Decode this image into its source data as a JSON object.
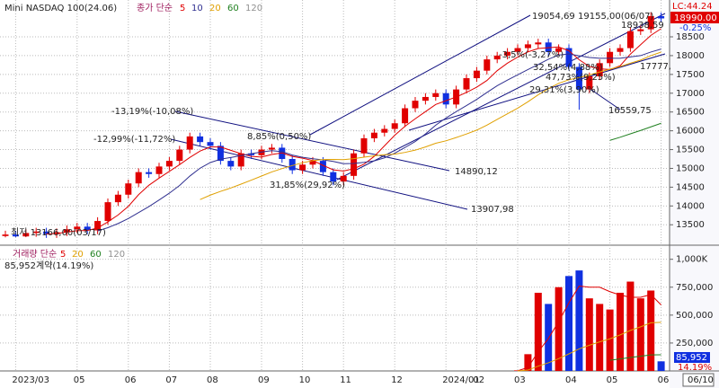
{
  "chart_data": [
    {
      "type": "candlestick",
      "title": "Mini NASDAQ 100(24.06)",
      "indicator": "종가 단순",
      "lc": "LC:44.24",
      "last_price": "18990.00",
      "last_change": "-0.25%",
      "up_color": "#e00000",
      "down_color": "#1030e0",
      "ma": [
        {
          "period": 5,
          "color": "#e00000"
        },
        {
          "period": 10,
          "color": "#303090"
        },
        {
          "period": 20,
          "color": "#e0a000"
        },
        {
          "period": 60,
          "color": "#208020"
        },
        {
          "period": 120,
          "color": "#909090"
        }
      ],
      "open": [
        13200,
        13240,
        13190,
        13280,
        13320,
        13250,
        13300,
        13380,
        13450,
        13350,
        13600,
        14100,
        14300,
        14600,
        14900,
        14850,
        15050,
        15200,
        15500,
        15850,
        15700,
        15600,
        15200,
        15050,
        15400,
        15350,
        15500,
        15550,
        15250,
        14950,
        15100,
        15200,
        14900,
        14650,
        14800,
        15400,
        15800,
        15950,
        16050,
        16200,
        16600,
        16800,
        16900,
        17000,
        16700,
        17100,
        17400,
        17600,
        17900,
        18000,
        18100,
        18200,
        18300,
        18350,
        18100,
        18200,
        17700,
        17100,
        17450,
        17800,
        18100,
        18200,
        18650,
        18700,
        19050
      ],
      "high": [
        13340,
        13340,
        13380,
        13420,
        13420,
        13400,
        13480,
        13550,
        13550,
        13700,
        14200,
        14400,
        14700,
        15000,
        15000,
        15150,
        15300,
        15600,
        15950,
        15950,
        15800,
        15700,
        15300,
        15500,
        15500,
        15600,
        15650,
        15650,
        15350,
        15200,
        15300,
        15300,
        15000,
        14900,
        15500,
        15900,
        16050,
        16150,
        16300,
        16700,
        16900,
        17000,
        17100,
        17100,
        17200,
        17500,
        17700,
        18000,
        18100,
        18200,
        18300,
        18400,
        18450,
        18450,
        18300,
        18300,
        17800,
        17550,
        17900,
        18200,
        18300,
        18750,
        18800,
        19155,
        19150
      ],
      "low": [
        13166,
        13170,
        13170,
        13180,
        13150,
        13150,
        13200,
        13280,
        13250,
        13250,
        13500,
        14000,
        14200,
        14500,
        14750,
        14750,
        14950,
        15100,
        15400,
        15600,
        15500,
        15100,
        14950,
        14950,
        15250,
        15250,
        15400,
        15150,
        14850,
        14850,
        15000,
        14800,
        14550,
        14550,
        14700,
        15300,
        15700,
        15850,
        15950,
        16100,
        16500,
        16700,
        16800,
        16600,
        16600,
        17000,
        17300,
        17500,
        17800,
        17900,
        18000,
        18100,
        18200,
        18000,
        18000,
        17600,
        16560,
        17000,
        17350,
        17700,
        18000,
        18100,
        18550,
        18600,
        18890
      ],
      "close": [
        13240,
        13190,
        13280,
        13320,
        13250,
        13300,
        13380,
        13450,
        13350,
        13600,
        14100,
        14300,
        14600,
        14900,
        14850,
        15050,
        15200,
        15500,
        15850,
        15700,
        15600,
        15200,
        15050,
        15400,
        15350,
        15500,
        15550,
        15250,
        14950,
        15100,
        15200,
        14900,
        14650,
        14800,
        15400,
        15800,
        15950,
        16050,
        16200,
        16600,
        16800,
        16900,
        17000,
        16700,
        17100,
        17400,
        17600,
        17900,
        18000,
        18100,
        18200,
        18300,
        18350,
        18100,
        18200,
        17700,
        17100,
        17450,
        17800,
        18100,
        18200,
        18650,
        18700,
        19050,
        18990
      ],
      "ylim": [
        12980,
        19480
      ],
      "yticks": [
        13500,
        14000,
        14500,
        15000,
        15500,
        16000,
        16500,
        17000,
        17500,
        18000,
        18500
      ],
      "annotations": [
        "19054,69",
        "19155,00(06/07)",
        "18938,59",
        "-13,19%(-10,08%)",
        "-12,99%(-11,72%)",
        "8,85%(0,50%)",
        "31,85%(29,92%)",
        "14890,12",
        "13907,98",
        "최저 13166,00(03/17)",
        "-3,5%(-3,27%)",
        "32,54%(4,88%)",
        "47,73%(9,25%)",
        "29,31%(3,90%)",
        "16559,75",
        "17777,"
      ]
    },
    {
      "type": "bar",
      "title": "거래량 단순",
      "summary": "85,952계약(14.19%)",
      "last_volume": "85,952",
      "last_pct": "14.19%",
      "date_box": "06/10",
      "ma": [
        {
          "period": 5,
          "color": "#e00000"
        },
        {
          "period": 20,
          "color": "#e0a000"
        },
        {
          "period": 60,
          "color": "#208020"
        },
        {
          "period": 120,
          "color": "#909090"
        }
      ],
      "categories": [
        null,
        "2023/03",
        null,
        null,
        null,
        null,
        null,
        "05",
        null,
        null,
        null,
        null,
        "06",
        null,
        null,
        null,
        "07",
        null,
        null,
        null,
        "08",
        null,
        null,
        null,
        null,
        "09",
        null,
        null,
        null,
        "10",
        null,
        null,
        null,
        "11",
        null,
        null,
        null,
        null,
        "12",
        null,
        null,
        null,
        null,
        "2024/01",
        null,
        null,
        "02",
        null,
        null,
        null,
        "03",
        null,
        null,
        null,
        null,
        "04",
        null,
        null,
        null,
        "05",
        null,
        null,
        null,
        null,
        "06"
      ],
      "values": [
        0,
        0,
        0,
        0,
        0,
        0,
        0,
        0,
        0,
        0,
        0,
        0,
        0,
        0,
        0,
        0,
        0,
        0,
        0,
        0,
        0,
        0,
        0,
        0,
        0,
        0,
        0,
        0,
        0,
        0,
        0,
        0,
        0,
        0,
        0,
        0,
        0,
        0,
        0,
        0,
        0,
        0,
        0,
        0,
        0,
        0,
        0,
        0,
        0,
        0,
        5000,
        150000,
        700000,
        600000,
        750000,
        850000,
        900000,
        650000,
        600000,
        550000,
        700000,
        800000,
        650000,
        720000,
        85952
      ],
      "ylim": [
        0,
        1110000
      ],
      "yticks": [
        {
          "value": 250000,
          "label": "250,000"
        },
        {
          "value": 500000,
          "label": "500,000"
        },
        {
          "value": 750000,
          "label": "750,000"
        },
        {
          "value": 1000000,
          "label": "1,000K"
        }
      ]
    }
  ]
}
